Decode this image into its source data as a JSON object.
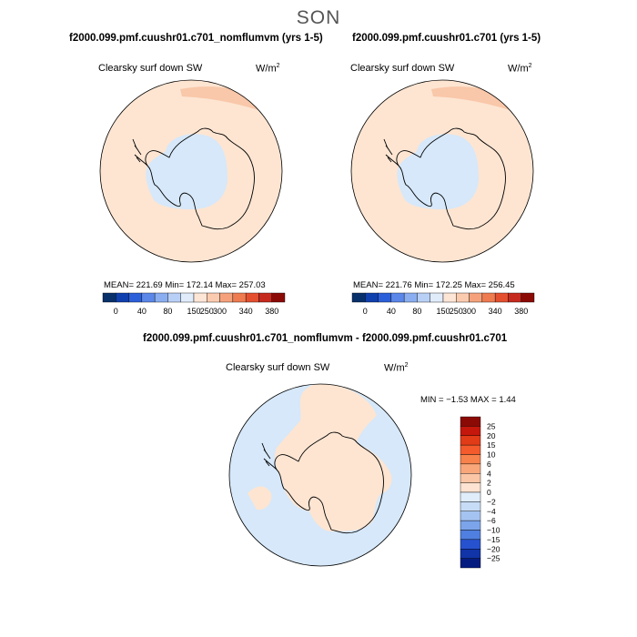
{
  "figure": {
    "season": "SON"
  },
  "colors": {
    "pos_light": "#fde5d2",
    "pos_mid": "#f9c7a9",
    "neg_light": "#d6e8fa",
    "coast": "#000000"
  },
  "colorbar_abs": {
    "colors": [
      "#08306b",
      "#103fae",
      "#2b5fd9",
      "#5a87e8",
      "#8aaef0",
      "#b9d0f6",
      "#e1ecfb",
      "#fde6d6",
      "#fbcbb0",
      "#f5a27c",
      "#ef7b51",
      "#e4502f",
      "#c62a1f",
      "#8b0a05"
    ],
    "labels": [
      "0",
      "40",
      "80",
      "150",
      "250",
      "300",
      "340",
      "380"
    ]
  },
  "colorbar_diff": {
    "colors": [
      "#8b0a05",
      "#c5170b",
      "#e23b18",
      "#f45a2c",
      "#f7824c",
      "#f9a77a",
      "#fbc6a6",
      "#fde3d1",
      "#e0edfb",
      "#c7dcf6",
      "#a5c3f1",
      "#7ba4ea",
      "#4f7fe0",
      "#2752cf",
      "#1134a8",
      "#041c80"
    ],
    "labels": [
      "25",
      "20",
      "15",
      "10",
      "6",
      "4",
      "2",
      "0",
      "−2",
      "−4",
      "−6",
      "−10",
      "−15",
      "−20",
      "−25"
    ]
  },
  "chart_data": [
    {
      "type": "heatmap",
      "title": "f2000.099.pmf.cuushr01.c701_nomflumvm (yrs 1-5)",
      "variable_label": "Clearsky surf down SW",
      "units": "W/m",
      "units_exp": "2",
      "stats": "MEAN= 221.69   Min= 172.14   Max= 257.03",
      "mean": 221.69,
      "min": 172.14,
      "max": 257.03,
      "contour_levels": [
        0,
        40,
        80,
        150,
        250,
        300,
        340,
        380
      ]
    },
    {
      "type": "heatmap",
      "title": "f2000.099.pmf.cuushr01.c701 (yrs 1-5)",
      "variable_label": "Clearsky surf down SW",
      "units": "W/m",
      "units_exp": "2",
      "stats": "MEAN= 221.76   Min= 172.25   Max= 256.45",
      "mean": 221.76,
      "min": 172.25,
      "max": 256.45,
      "contour_levels": [
        0,
        40,
        80,
        150,
        250,
        300,
        340,
        380
      ]
    },
    {
      "type": "heatmap",
      "title": "f2000.099.pmf.cuushr01.c701_nomflumvm - f2000.099.pmf.cuushr01.c701",
      "variable_label": "Clearsky surf down SW",
      "units": "W/m",
      "units_exp": "2",
      "stats": "MIN =   −1.53  MAX =    1.44",
      "min": -1.53,
      "max": 1.44,
      "contour_levels": [
        -25,
        -20,
        -15,
        -10,
        -6,
        -4,
        -2,
        0,
        2,
        4,
        6,
        10,
        15,
        20,
        25
      ]
    }
  ]
}
